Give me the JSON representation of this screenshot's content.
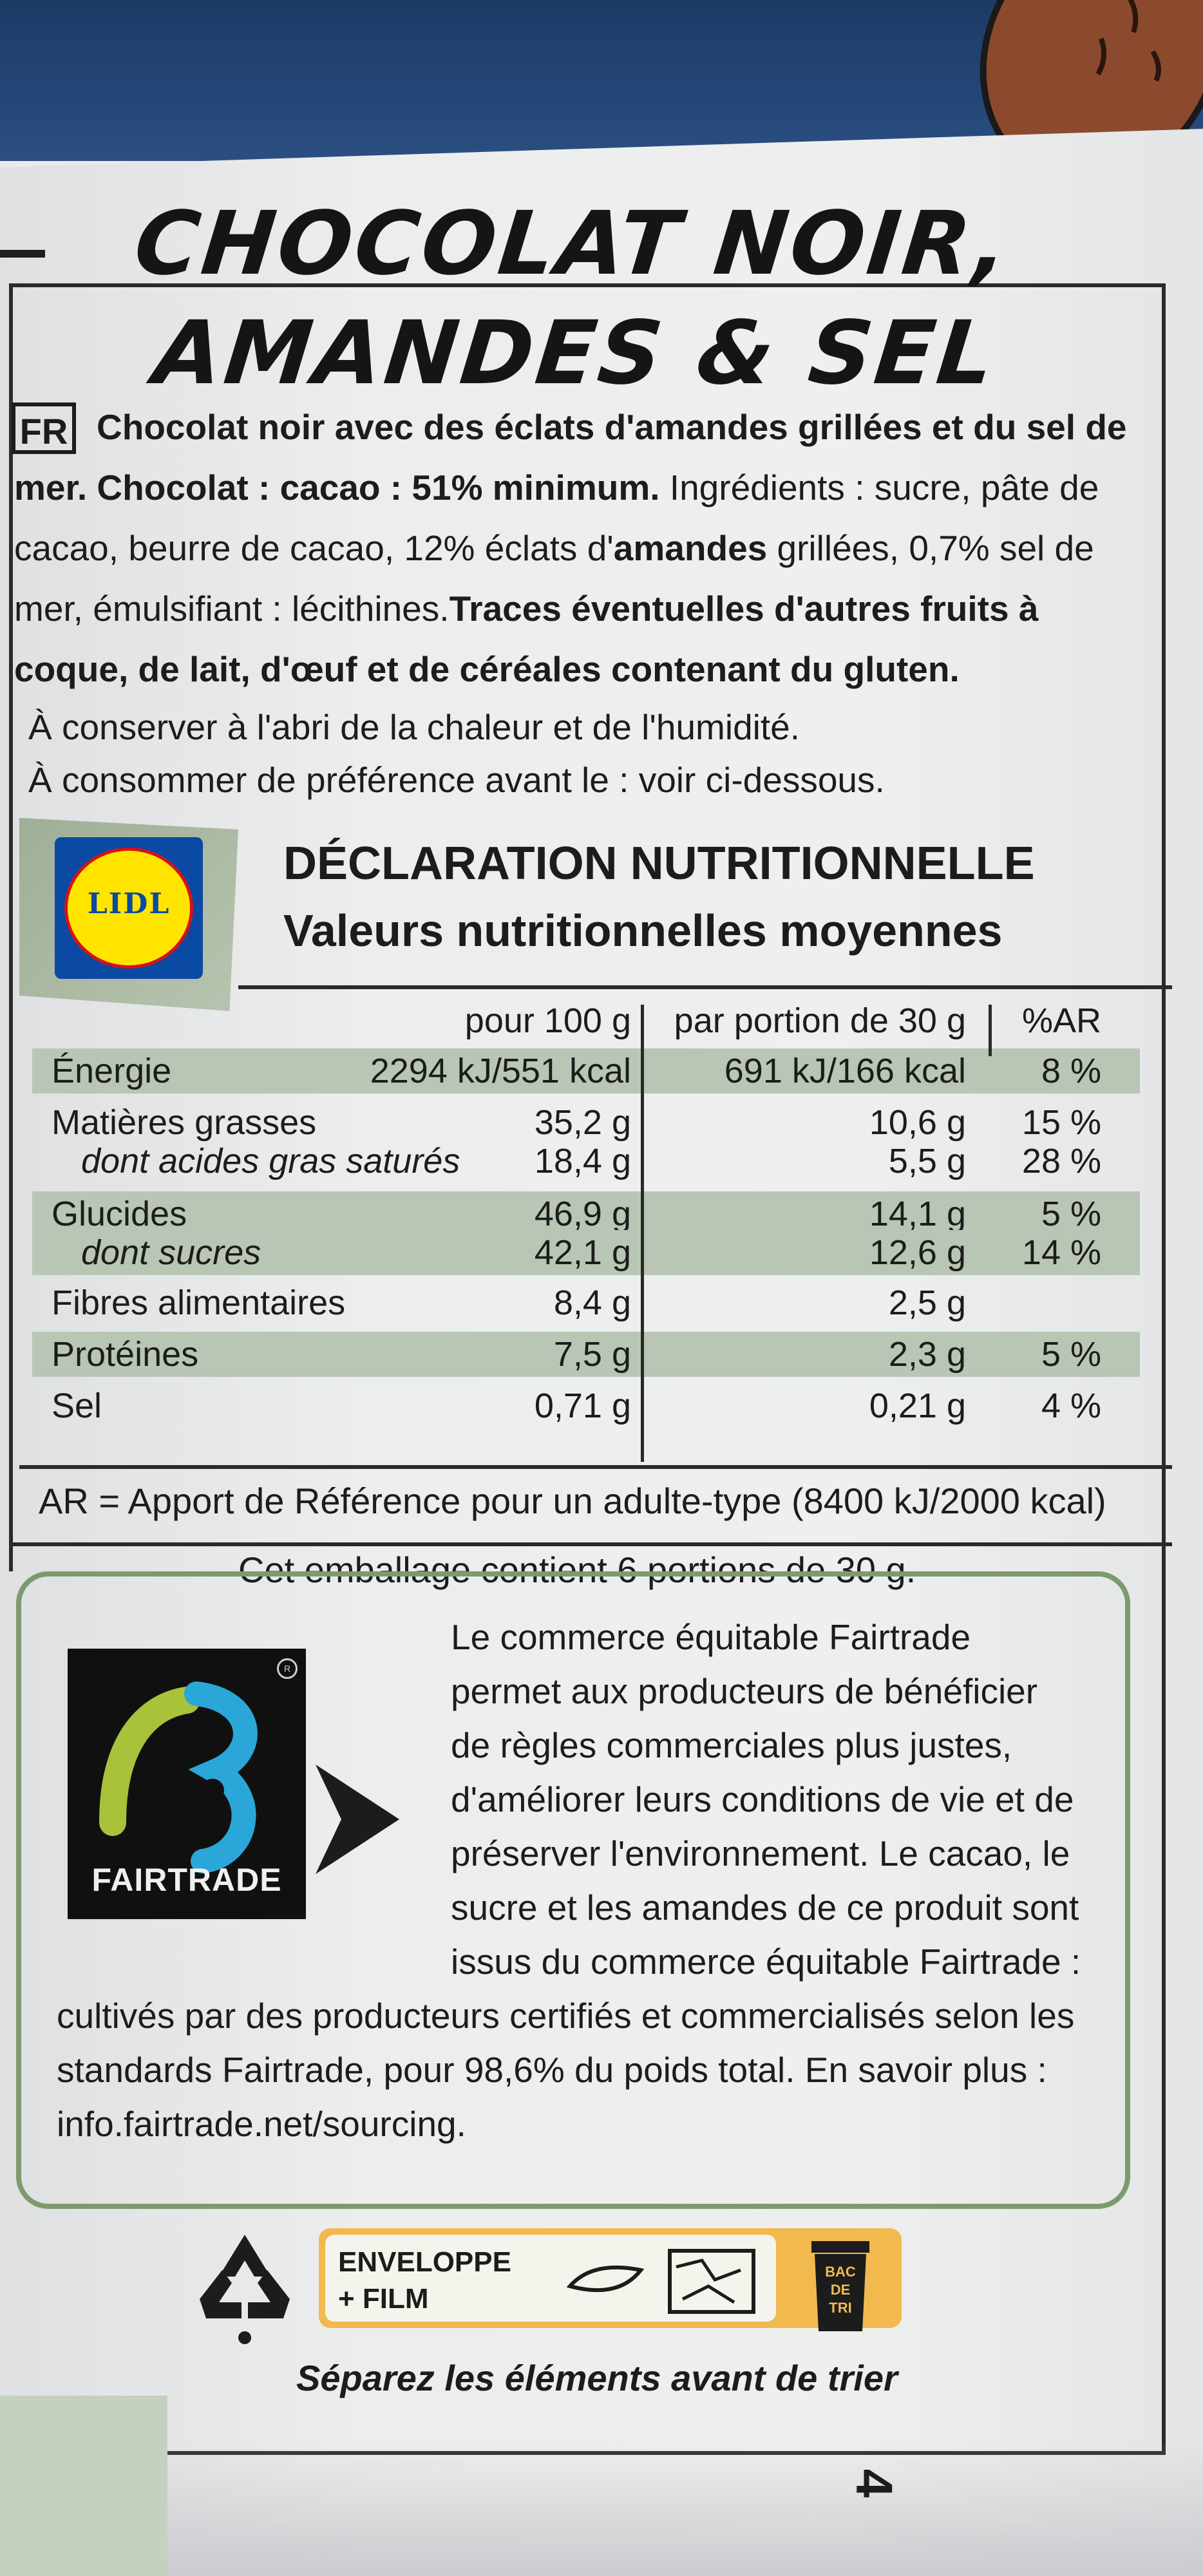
{
  "title": {
    "line1": "CHOCOLAT NOIR,",
    "line2": "AMANDES & SEL"
  },
  "ingredients": {
    "lang_badge": "FR",
    "lines": [
      {
        "bold": "Chocolat noir avec des éclats d'amandes grillées et du sel de",
        "plain": ""
      },
      {
        "bold": "mer. Chocolat : cacao : 51% minimum.",
        "plain": " Ingrédients : sucre, pâte de"
      },
      {
        "plain1": "cacao, beurre de cacao, 12% éclats d'",
        "bold": "amandes",
        "plain2": " grillées, 0,7% sel de"
      },
      {
        "plain": "mer, émulsifiant : lécithines.",
        "bold": "Traces éventuelles d'autres fruits à"
      },
      {
        "bold": "coque, de lait, d'œuf et de céréales contenant du gluten.",
        "plain": ""
      },
      {
        "plain": "À conserver à l'abri de la chaleur et de l'humidité."
      },
      {
        "plain": "À consommer de préférence avant le : voir ci-dessous."
      }
    ]
  },
  "brand": {
    "logo_text": "LIDL"
  },
  "nutrition": {
    "title": "DÉCLARATION NUTRITIONNELLE",
    "subtitle": "Valeurs nutritionnelles moyennes",
    "columns": {
      "per100": "pour 100 g",
      "portion": "par portion de 30 g",
      "ar": "%AR"
    },
    "rows": [
      {
        "label": "Énergie",
        "per100": "2294 kJ/551 kcal",
        "portion": "691 kJ/166 kcal",
        "ar": "8 %",
        "sub": false,
        "shade": true
      },
      {
        "label": "Matières grasses",
        "per100": "35,2 g",
        "portion": "10,6 g",
        "ar": "15 %",
        "sub": false,
        "shade": false
      },
      {
        "label": "dont acides gras saturés",
        "per100": "18,4 g",
        "portion": "5,5 g",
        "ar": "28 %",
        "sub": true,
        "shade": false
      },
      {
        "label": "Glucides",
        "per100": "46,9 g",
        "portion": "14,1 g",
        "ar": "5 %",
        "sub": false,
        "shade": true
      },
      {
        "label": "dont sucres",
        "per100": "42,1 g",
        "portion": "12,6 g",
        "ar": "14 %",
        "sub": true,
        "shade": true
      },
      {
        "label": "Fibres alimentaires",
        "per100": "8,4 g",
        "portion": "2,5 g",
        "ar": "",
        "sub": false,
        "shade": false
      },
      {
        "label": "Protéines",
        "per100": "7,5 g",
        "portion": "2,3 g",
        "ar": "5 %",
        "sub": false,
        "shade": true
      },
      {
        "label": "Sel",
        "per100": "0,71 g",
        "portion": "0,21 g",
        "ar": "4 %",
        "sub": false,
        "shade": false
      }
    ],
    "ar_note": "AR = Apport de Référence pour un adulte-type (8400 kJ/2000 kcal)",
    "portions_note": "Cet emballage contient 6 portions de 30 g."
  },
  "fairtrade": {
    "logo_label": "FAIRTRADE",
    "registered_mark": "R",
    "lines": [
      "Le commerce équitable Fairtrade",
      "permet aux producteurs de bénéficier",
      "de règles commerciales plus justes,",
      "d'améliorer leurs conditions de vie et de",
      "préserver l'environnement. Le cacao, le",
      "sucre et les amandes de ce produit sont",
      "issus du commerce équitable Fairtrade :",
      "cultivés par des producteurs certifiés et commercialisés selon les",
      "standards Fairtrade, pour 98,6% du poids total. En savoir plus :",
      "info.fairtrade.net/sourcing."
    ]
  },
  "recycling": {
    "label1": "ENVELOPPE",
    "label2": "+ FILM",
    "bin_text": [
      "BAC",
      "DE",
      "TRI"
    ],
    "caption": "Séparez les éléments avant de trier"
  },
  "page_number": "4",
  "colors": {
    "band": "#1d3a66",
    "almond": "#8b4a2e",
    "table_shade": "#b9c6b5",
    "fairtrade_green": "#7e9a6c",
    "sort_orange": "#f2b94f"
  }
}
